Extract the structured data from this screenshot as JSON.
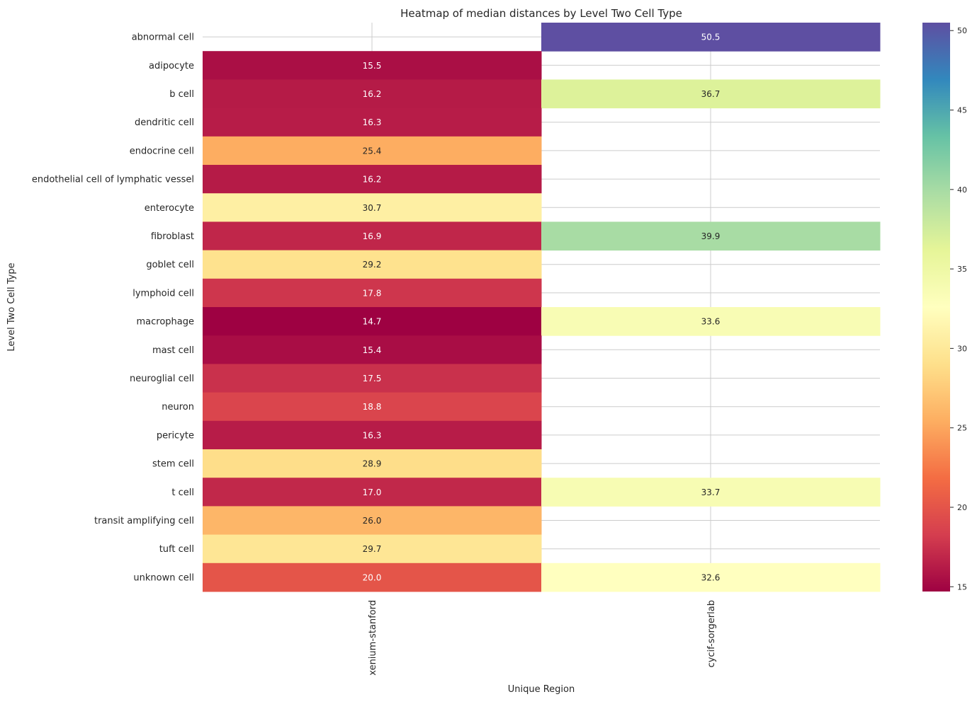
{
  "chart_data": {
    "type": "heatmap",
    "title": "Heatmap of median distances by Level Two Cell Type",
    "xlabel": "Unique Region",
    "ylabel": "Level Two Cell Type",
    "colormap": "Spectral",
    "columns": [
      "xenium-stanford",
      "cycif-sorgerlab"
    ],
    "rows": [
      "abnormal cell",
      "adipocyte",
      "b cell",
      "dendritic cell",
      "endocrine cell",
      "endothelial cell of lymphatic vessel",
      "enterocyte",
      "fibroblast",
      "goblet cell",
      "lymphoid cell",
      "macrophage",
      "mast cell",
      "neuroglial cell",
      "neuron",
      "pericyte",
      "stem cell",
      "t cell",
      "transit amplifying cell",
      "tuft cell",
      "unknown cell"
    ],
    "values": [
      [
        null,
        50.5
      ],
      [
        15.5,
        null
      ],
      [
        16.2,
        36.7
      ],
      [
        16.3,
        null
      ],
      [
        25.4,
        null
      ],
      [
        16.2,
        null
      ],
      [
        30.7,
        null
      ],
      [
        16.9,
        39.9
      ],
      [
        29.2,
        null
      ],
      [
        17.8,
        null
      ],
      [
        14.7,
        33.6
      ],
      [
        15.4,
        null
      ],
      [
        17.5,
        null
      ],
      [
        18.8,
        null
      ],
      [
        16.3,
        null
      ],
      [
        28.9,
        null
      ],
      [
        17.0,
        33.7
      ],
      [
        26.0,
        null
      ],
      [
        29.7,
        null
      ],
      [
        20.0,
        32.6
      ]
    ],
    "annotations": [
      [
        "",
        "50.5"
      ],
      [
        "15.5",
        ""
      ],
      [
        "16.2",
        "36.7"
      ],
      [
        "16.3",
        ""
      ],
      [
        "25.4",
        ""
      ],
      [
        "16.2",
        ""
      ],
      [
        "30.7",
        ""
      ],
      [
        "16.9",
        "39.9"
      ],
      [
        "29.2",
        ""
      ],
      [
        "17.8",
        ""
      ],
      [
        "14.7",
        "33.6"
      ],
      [
        "15.4",
        ""
      ],
      [
        "17.5",
        ""
      ],
      [
        "18.8",
        ""
      ],
      [
        "16.3",
        ""
      ],
      [
        "28.9",
        ""
      ],
      [
        "17.0",
        "33.7"
      ],
      [
        "26.0",
        ""
      ],
      [
        "29.7",
        ""
      ],
      [
        "20.0",
        "32.6"
      ]
    ],
    "colorbar": {
      "range": [
        14.7,
        50.5
      ],
      "ticks": [
        15,
        20,
        25,
        30,
        35,
        40,
        45,
        50
      ],
      "tick_labels": [
        "15",
        "20",
        "25",
        "30",
        "35",
        "40",
        "45",
        "50"
      ]
    },
    "grid": true
  }
}
